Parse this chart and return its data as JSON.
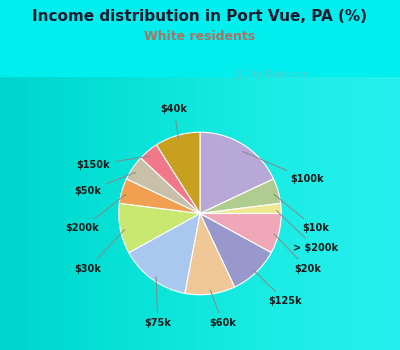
{
  "title": "Income distribution in Port Vue, PA (%)",
  "subtitle": "White residents",
  "background_color": "#00EEEE",
  "chart_bg_color": "#ddf0e8",
  "watermark": "ⓘ City-Data.com",
  "labels": [
    "$100k",
    "$10k",
    "> $200k",
    "$20k",
    "$125k",
    "$60k",
    "$75k",
    "$30k",
    "$200k",
    "$50k",
    "$150k",
    "$40k"
  ],
  "values": [
    18,
    5,
    2,
    8,
    10,
    10,
    14,
    10,
    5,
    5,
    4,
    9
  ],
  "colors": [
    "#b8a8d8",
    "#b0cc90",
    "#f0e890",
    "#f0a8b8",
    "#9898cc",
    "#f0c898",
    "#a8c8f0",
    "#c8e870",
    "#f0a050",
    "#c8c0a8",
    "#f07888",
    "#c8a020"
  ],
  "title_fontsize": 11,
  "subtitle_fontsize": 9,
  "title_color": "#1a1a2e",
  "subtitle_color": "#b07060",
  "label_fontsize": 7,
  "label_color": "#1a1a1a"
}
